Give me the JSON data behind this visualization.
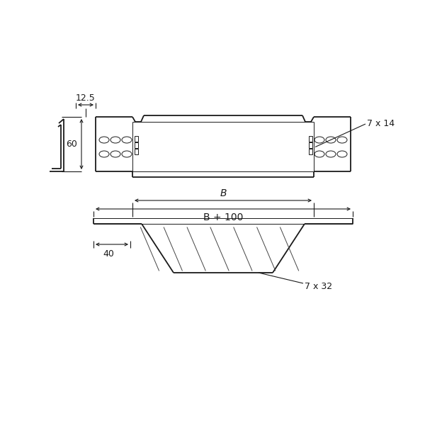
{
  "bg_color": "#ffffff",
  "line_color": "#1a1a1a",
  "lw_main": 1.3,
  "lw_thin": 0.7,
  "lw_dim": 0.8,
  "fig_size": [
    6.0,
    6.0
  ],
  "dpi": 100,
  "annotations": {
    "dim_125": "12.5",
    "dim_60": "60",
    "dim_40": "40",
    "dim_B": "B",
    "dim_B100": "B + 100",
    "dim_7x14": "7 x 14",
    "dim_7x32": "7 x 32"
  }
}
